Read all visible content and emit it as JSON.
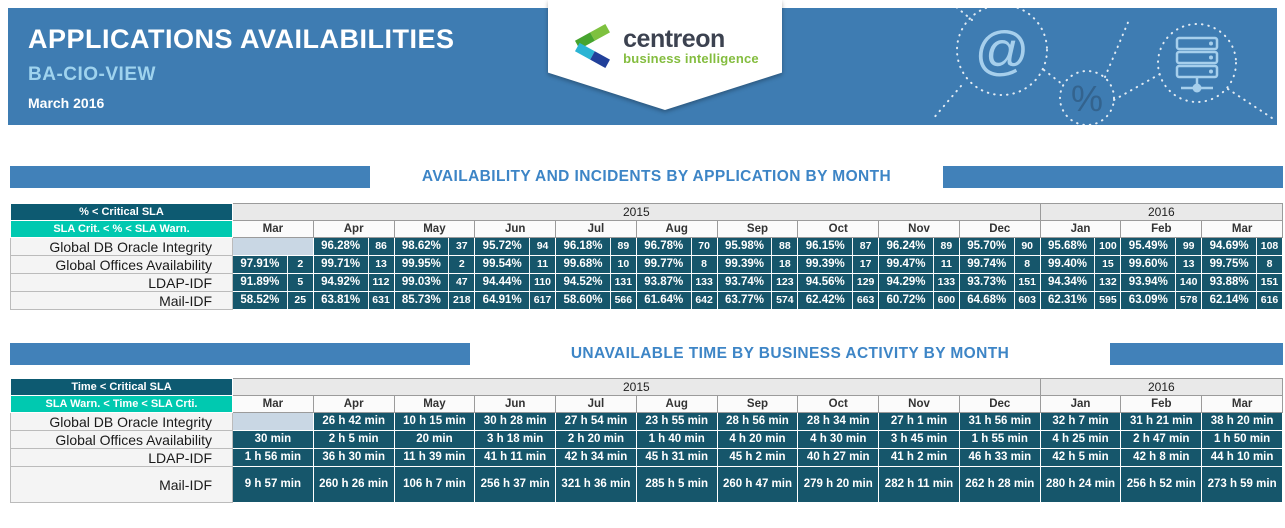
{
  "header": {
    "title": "APPLICATIONS AVAILABILITIES",
    "subtitle": "BA-CIO-VIEW",
    "period": "March 2016",
    "logo": {
      "name": "centreon",
      "tagline": "business intelligence"
    },
    "decor_icons": [
      "at-icon",
      "percent-icon",
      "server-icon"
    ],
    "colors": {
      "header_blue": "#3e7cb2",
      "bar_blue": "#4181b9",
      "title_blue": "#3d85c6",
      "legend_dark_teal": "#0d5a71",
      "legend_turquoise": "#00c9b0",
      "cell_teal": "#16566b",
      "empty_cell": "#c9d7e4",
      "logo_green": "#84bd3f"
    }
  },
  "section1": {
    "title": "AVAILABILITY AND INCIDENTS BY APPLICATION BY MONTH"
  },
  "section2": {
    "title": "UNAVAILABLE TIME BY BUSINESS ACTIVITY BY MONTH"
  },
  "table1": {
    "legend_top": "% < Critical SLA",
    "legend_bottom": "SLA Crit. < % < SLA Warn.",
    "years": [
      {
        "label": "2015",
        "span": 10
      },
      {
        "label": "2016",
        "span": 3
      }
    ],
    "months": [
      "Mar",
      "Apr",
      "May",
      "Jun",
      "Jul",
      "Aug",
      "Sep",
      "Oct",
      "Nov",
      "Dec",
      "Jan",
      "Feb",
      "Mar"
    ],
    "rows": [
      {
        "label": "Global DB Oracle Integrity",
        "cells": [
          null,
          [
            "96.28%",
            86
          ],
          [
            "98.62%",
            37
          ],
          [
            "95.72%",
            94
          ],
          [
            "96.18%",
            89
          ],
          [
            "96.78%",
            70
          ],
          [
            "95.98%",
            88
          ],
          [
            "96.15%",
            87
          ],
          [
            "96.24%",
            89
          ],
          [
            "95.70%",
            90
          ],
          [
            "95.68%",
            100
          ],
          [
            "95.49%",
            99
          ],
          [
            "94.69%",
            108
          ]
        ]
      },
      {
        "label": "Global Offices Availability",
        "cells": [
          [
            "97.91%",
            2
          ],
          [
            "99.71%",
            13
          ],
          [
            "99.95%",
            2
          ],
          [
            "99.54%",
            11
          ],
          [
            "99.68%",
            10
          ],
          [
            "99.77%",
            8
          ],
          [
            "99.39%",
            18
          ],
          [
            "99.39%",
            17
          ],
          [
            "99.47%",
            11
          ],
          [
            "99.74%",
            8
          ],
          [
            "99.40%",
            15
          ],
          [
            "99.60%",
            13
          ],
          [
            "99.75%",
            8
          ]
        ]
      },
      {
        "label": "LDAP-IDF",
        "cells": [
          [
            "91.89%",
            5
          ],
          [
            "94.92%",
            112
          ],
          [
            "99.03%",
            47
          ],
          [
            "94.44%",
            110
          ],
          [
            "94.52%",
            131
          ],
          [
            "93.87%",
            133
          ],
          [
            "93.74%",
            123
          ],
          [
            "94.56%",
            129
          ],
          [
            "94.29%",
            133
          ],
          [
            "93.73%",
            151
          ],
          [
            "94.34%",
            132
          ],
          [
            "93.94%",
            140
          ],
          [
            "93.88%",
            151
          ]
        ]
      },
      {
        "label": "Mail-IDF",
        "cells": [
          [
            "58.52%",
            25
          ],
          [
            "63.81%",
            631
          ],
          [
            "85.73%",
            218
          ],
          [
            "64.91%",
            617
          ],
          [
            "58.60%",
            566
          ],
          [
            "61.64%",
            642
          ],
          [
            "63.77%",
            574
          ],
          [
            "62.42%",
            663
          ],
          [
            "60.72%",
            600
          ],
          [
            "64.68%",
            603
          ],
          [
            "62.31%",
            595
          ],
          [
            "63.09%",
            578
          ],
          [
            "62.14%",
            616
          ]
        ]
      }
    ]
  },
  "table2": {
    "legend_top": "Time < Critical SLA",
    "legend_bottom": "SLA Warn. < Time < SLA Crti.",
    "years": [
      {
        "label": "2015",
        "span": 10
      },
      {
        "label": "2016",
        "span": 3
      }
    ],
    "months": [
      "Mar",
      "Apr",
      "May",
      "Jun",
      "Jul",
      "Aug",
      "Sep",
      "Oct",
      "Nov",
      "Dec",
      "Jan",
      "Feb",
      "Mar"
    ],
    "rows": [
      {
        "label": "Global DB Oracle Integrity",
        "cells": [
          null,
          "26 h 42 min",
          "10 h 15 min",
          "30 h 28 min",
          "27 h 54 min",
          "23 h 55 min",
          "28 h 56 min",
          "28 h 34 min",
          "27 h 1 min",
          "31 h 56 min",
          "32 h 7 min",
          "31 h 21 min",
          "38 h 20 min"
        ]
      },
      {
        "label": "Global Offices Availability",
        "cells": [
          "30 min",
          "2 h 5 min",
          "20 min",
          "3 h 18 min",
          "2 h 20 min",
          "1 h 40 min",
          "4 h 20 min",
          "4 h 30 min",
          "3 h 45 min",
          "1 h 55 min",
          "4 h 25 min",
          "2 h 47 min",
          "1 h 50 min"
        ]
      },
      {
        "label": "LDAP-IDF",
        "cells": [
          "1 h 56 min",
          "36 h 30 min",
          "11 h 39 min",
          "41 h 11 min",
          "42 h 34 min",
          "45 h 31 min",
          "45 h 2 min",
          "40 h 27 min",
          "41 h 2 min",
          "46 h 33 min",
          "42 h 5 min",
          "42 h 8 min",
          "44 h 10 min"
        ]
      },
      {
        "label": "Mail-IDF",
        "tall": true,
        "cells": [
          "9 h 57 min",
          "260 h 26 min",
          "106 h 7 min",
          "256 h 37 min",
          "321 h 36 min",
          "285 h 5 min",
          "260 h 47 min",
          "279 h 20 min",
          "282 h 11 min",
          "262 h 28 min",
          "280 h 24 min",
          "256 h 52 min",
          "273 h 59 min"
        ]
      }
    ]
  }
}
